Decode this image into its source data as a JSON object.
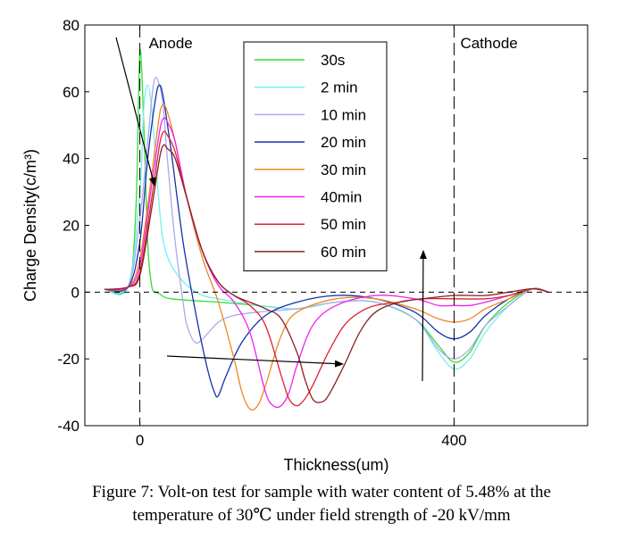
{
  "figure": {
    "caption_line1": "Figure 7: Volt-on test for sample with water content of 5.48% at the",
    "caption_line2": "temperature of 30℃ under field strength of -20 kV/mm"
  },
  "chart_data": {
    "type": "line",
    "title": "",
    "xlabel": "Thickness(um)",
    "ylabel": "Charge Density(c/m³)",
    "xlim": [
      -70,
      570
    ],
    "ylim": [
      -40,
      80
    ],
    "xticks": [
      0,
      400
    ],
    "yticks": [
      -40,
      -20,
      0,
      20,
      40,
      60,
      80
    ],
    "grid": false,
    "legend_position": "top-center",
    "annotations": {
      "anode_label": "Anode",
      "cathode_label": "Cathode",
      "anode_x": 0,
      "cathode_x": 400,
      "zero_line": 0
    },
    "series": [
      {
        "name": "30s",
        "color": "#33dd33",
        "x": [
          -45,
          -15,
          -5,
          0,
          5,
          10,
          15,
          20,
          25,
          40,
          100,
          150,
          200,
          250,
          300,
          350,
          380,
          400,
          420,
          440,
          470,
          500,
          520
        ],
        "y": [
          0.8,
          1.5,
          25,
          72,
          50,
          15,
          2,
          0,
          -0.5,
          -2,
          -3,
          -4,
          -5,
          -3,
          -3,
          -8,
          -16,
          -21,
          -18,
          -10,
          -3,
          1,
          0
        ]
      },
      {
        "name": "2 min",
        "color": "#77eeee",
        "x": [
          -45,
          -15,
          0,
          5,
          10,
          15,
          20,
          25,
          30,
          40,
          60,
          80,
          100,
          150,
          200,
          250,
          300,
          350,
          380,
          400,
          420,
          440,
          470,
          500,
          520
        ],
        "y": [
          0.8,
          1.5,
          30,
          55,
          62,
          55,
          40,
          25,
          15,
          8,
          2,
          -1,
          -2,
          -4,
          -5,
          -3,
          -3,
          -8,
          -18,
          -23,
          -20,
          -12,
          -4,
          1,
          0
        ]
      },
      {
        "name": "10 min",
        "color": "#aaaaee",
        "x": [
          -45,
          -15,
          0,
          10,
          18,
          25,
          30,
          35,
          45,
          55,
          60,
          70,
          80,
          100,
          120,
          150,
          200,
          250,
          300,
          350,
          380,
          400,
          420,
          440,
          470,
          500,
          520
        ],
        "y": [
          0.8,
          1.5,
          22,
          45,
          63,
          62,
          55,
          40,
          15,
          -3,
          -10,
          -15,
          -14,
          -9,
          -7,
          -6,
          -5,
          -3,
          -3,
          -8,
          -17,
          -20,
          -17,
          -10,
          -4,
          1,
          0
        ]
      },
      {
        "name": "20 min",
        "color": "#1133aa",
        "x": [
          -45,
          -15,
          0,
          10,
          20,
          25,
          30,
          40,
          55,
          70,
          85,
          95,
          100,
          110,
          130,
          160,
          200,
          250,
          300,
          350,
          380,
          400,
          420,
          440,
          470,
          500,
          520
        ],
        "y": [
          0.8,
          1.5,
          15,
          40,
          58,
          62,
          58,
          42,
          15,
          -5,
          -22,
          -30,
          -31,
          -25,
          -15,
          -7,
          -3,
          -1,
          -2,
          -6,
          -12,
          -14,
          -12,
          -7,
          -2,
          1,
          0
        ]
      },
      {
        "name": "30 min",
        "color": "#ee8822",
        "x": [
          -45,
          -15,
          0,
          15,
          25,
          30,
          35,
          45,
          60,
          80,
          100,
          120,
          130,
          140,
          150,
          160,
          180,
          200,
          250,
          300,
          350,
          380,
          400,
          420,
          440,
          470,
          500,
          520
        ],
        "y": [
          0.8,
          1.5,
          10,
          35,
          53,
          56,
          54,
          45,
          28,
          10,
          -3,
          -20,
          -30,
          -35,
          -34,
          -28,
          -13,
          -6,
          -2,
          -2,
          -5,
          -8,
          -9,
          -8,
          -5,
          -2,
          1,
          0
        ]
      },
      {
        "name": "40min",
        "color": "#ee22ee",
        "x": [
          -45,
          -15,
          0,
          15,
          25,
          30,
          35,
          45,
          60,
          80,
          100,
          120,
          140,
          160,
          170,
          180,
          190,
          200,
          220,
          250,
          300,
          350,
          380,
          400,
          420,
          440,
          470,
          500,
          520
        ],
        "y": [
          0.8,
          1.5,
          8,
          32,
          48,
          52,
          51,
          45,
          28,
          12,
          2,
          -3,
          -12,
          -30,
          -34,
          -34,
          -30,
          -22,
          -10,
          -4,
          -1,
          -2,
          -4,
          -4,
          -4,
          -3,
          -1,
          1,
          0
        ]
      },
      {
        "name": "50 min",
        "color": "#dd2233",
        "x": [
          -45,
          -15,
          0,
          15,
          25,
          30,
          35,
          45,
          60,
          80,
          100,
          120,
          140,
          160,
          180,
          190,
          200,
          210,
          220,
          240,
          260,
          280,
          300,
          330,
          360,
          400,
          440,
          470,
          500,
          520
        ],
        "y": [
          0.8,
          1.5,
          6,
          28,
          44,
          48,
          47,
          42,
          28,
          12,
          3,
          -1,
          -4,
          -10,
          -25,
          -32,
          -34,
          -32,
          -28,
          -18,
          -10,
          -6,
          -4,
          -3,
          -2,
          -2,
          -2,
          -1,
          1,
          0
        ]
      },
      {
        "name": "60 min",
        "color": "#882222",
        "x": [
          -45,
          -15,
          0,
          15,
          25,
          30,
          35,
          45,
          60,
          80,
          100,
          120,
          140,
          160,
          180,
          200,
          210,
          220,
          230,
          240,
          260,
          280,
          300,
          330,
          360,
          400,
          440,
          470,
          500,
          520
        ],
        "y": [
          0.8,
          1.5,
          5,
          25,
          40,
          44,
          43,
          40,
          28,
          12,
          3,
          -1,
          -3,
          -5,
          -8,
          -18,
          -26,
          -32,
          -33,
          -31,
          -22,
          -12,
          -6,
          -3,
          -2,
          -1,
          -1,
          0,
          1,
          0
        ]
      }
    ]
  }
}
